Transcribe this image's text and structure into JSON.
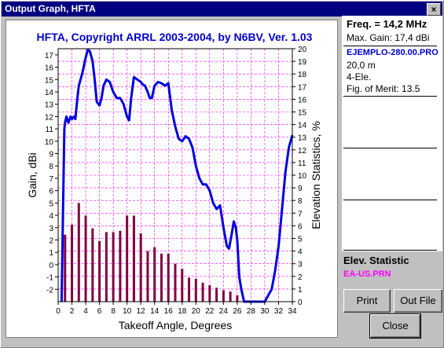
{
  "window": {
    "title": "Output Graph, HFTA",
    "close_glyph": "×"
  },
  "info": {
    "freq": "Freq. = 14,2 MHz",
    "max_gain": "Max. Gain: 17,4 dBi",
    "file": "EJEMPLO-280.00.PRO",
    "height": "20,0 m",
    "elements": "4-Ele.",
    "merit": "Fig. of Merit:  13.5"
  },
  "elev": {
    "label": "Elev. Statistic",
    "file": "EA-US.PRN"
  },
  "buttons": {
    "print": "Print",
    "outfile": "Out File",
    "close": "Close"
  },
  "colors": {
    "title_bar": "#000080",
    "gain_line": "#0000e0",
    "bars": "#800040",
    "grid": "#ff00ff",
    "file_text": "#0000cc",
    "stat_file": "#ff00ff"
  },
  "chart_data": {
    "type": "line",
    "title": "HFTA, Copyright ARRL 2003-2004, by N6BV, Ver. 1.03",
    "xlabel": "Takeoff Angle, Degrees",
    "ylabel": "Gain, dBi",
    "y2label": "Elevation Statistics, %",
    "xlim": [
      0,
      34
    ],
    "ylim": [
      -3,
      17.5
    ],
    "y2lim": [
      0,
      20
    ],
    "x_ticks": [
      "0",
      "2",
      "4",
      "6",
      "8",
      "10",
      "12",
      "14",
      "16",
      "18",
      "20",
      "22",
      "24",
      "26",
      "28",
      "30",
      "32",
      "34"
    ],
    "y_ticks": [
      "-2",
      "-1",
      "0",
      "1",
      "2",
      "3",
      "4",
      "5",
      "6",
      "7",
      "8",
      "9",
      "10",
      "11",
      "12",
      "13",
      "14",
      "15",
      "16",
      "17"
    ],
    "y2_ticks": [
      "0",
      "1",
      "2",
      "3",
      "4",
      "5",
      "6",
      "7",
      "8",
      "9",
      "10",
      "11",
      "12",
      "13",
      "14",
      "15",
      "16",
      "17",
      "18",
      "19",
      "20"
    ],
    "gain_series": {
      "x": [
        0.5,
        0.7,
        0.9,
        1.0,
        1.2,
        1.5,
        1.8,
        2.0,
        2.3,
        2.5,
        2.8,
        3.0,
        3.5,
        4.0,
        4.3,
        4.6,
        5.0,
        5.3,
        5.6,
        6.0,
        6.3,
        6.6,
        7.0,
        7.5,
        8.0,
        8.5,
        9.0,
        9.5,
        10.0,
        10.3,
        10.6,
        11.0,
        11.5,
        12.0,
        12.3,
        12.6,
        13.0,
        13.3,
        13.6,
        14.0,
        14.5,
        15.0,
        15.5,
        16.0,
        16.5,
        17.0,
        17.5,
        18.0,
        18.5,
        19.0,
        19.5,
        20.0,
        20.5,
        21.0,
        21.5,
        22.0,
        22.5,
        23.0,
        23.5,
        24.0,
        24.5,
        24.8,
        25.2,
        25.5,
        25.8,
        26.0,
        26.3,
        26.6,
        27.0,
        30.0,
        30.5,
        31.0,
        31.5,
        32.0,
        32.5,
        33.0,
        33.5,
        34.0
      ],
      "y": [
        -3,
        4,
        11,
        11.5,
        12,
        11.5,
        12,
        11.8,
        12,
        11.8,
        13.5,
        14.5,
        15.5,
        16.8,
        17.4,
        17.3,
        16.5,
        15,
        13.2,
        12.9,
        13.5,
        14.5,
        15,
        14.8,
        14,
        13.5,
        13.5,
        13,
        12,
        11.7,
        13.5,
        15.2,
        15,
        14.8,
        14.6,
        14.5,
        14,
        13.5,
        13.5,
        14.5,
        14.8,
        14.7,
        14.5,
        14.7,
        12.5,
        11.2,
        10.2,
        10,
        10.4,
        10.2,
        9.5,
        8,
        7,
        6.5,
        6.5,
        6,
        5,
        4.5,
        4.8,
        3,
        1.5,
        1.3,
        2.5,
        3.5,
        3,
        2,
        -1,
        -2,
        -3,
        -3,
        -2.5,
        -2,
        -0.5,
        1.5,
        4.5,
        7.5,
        9.5,
        10.5
      ]
    },
    "elevation_bars": {
      "x": [
        1,
        2,
        3,
        4,
        5,
        6,
        7,
        8,
        9,
        10,
        11,
        12,
        13,
        14,
        15,
        16,
        17,
        18,
        19,
        20,
        21,
        22,
        23,
        24,
        25,
        26
      ],
      "values": [
        5.3,
        6.1,
        7.8,
        6.8,
        5.8,
        4.8,
        5.5,
        5.5,
        5.6,
        6.8,
        6.8,
        5.4,
        4,
        4.3,
        3.8,
        3.8,
        3,
        2.6,
        1.9,
        1.8,
        1.5,
        1.3,
        1.1,
        0.9,
        0.8,
        0.5
      ]
    }
  }
}
